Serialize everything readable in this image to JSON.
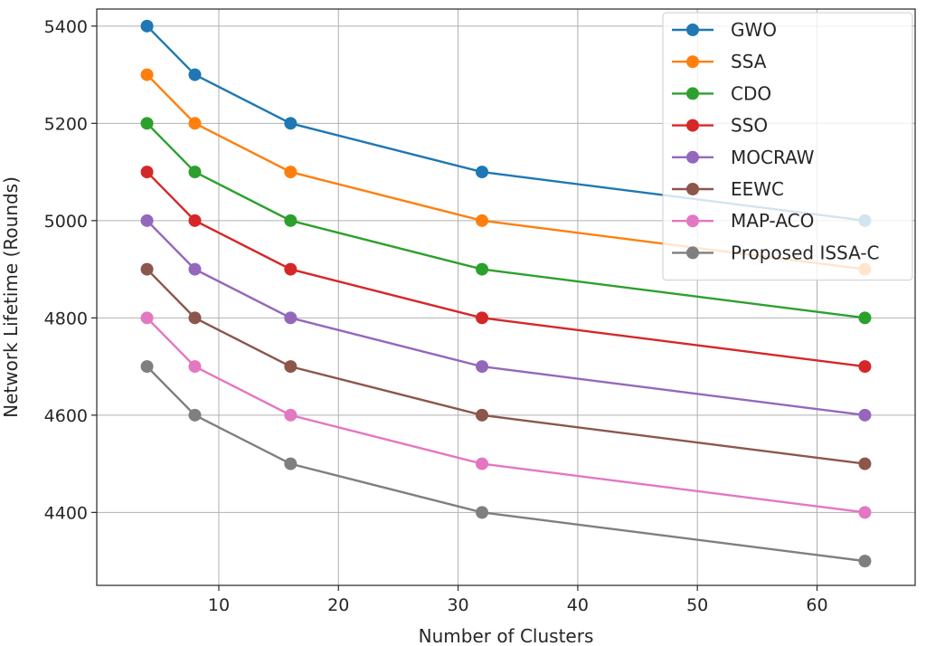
{
  "chart_data": {
    "type": "line",
    "title": "",
    "xlabel": "Number of Clusters",
    "ylabel": "Network Lifetime (Rounds)",
    "xlim": [
      -0.2,
      68.2
    ],
    "ylim": [
      4250,
      5435
    ],
    "xticks": [
      10,
      20,
      30,
      40,
      50,
      60
    ],
    "yticks": [
      4400,
      4600,
      4800,
      5000,
      5200,
      5400
    ],
    "grid": true,
    "legend_position": "upper-right",
    "x": [
      4,
      8,
      16,
      32,
      64
    ],
    "series": [
      {
        "name": "GWO",
        "color": "#1f77b4",
        "values": [
          5400,
          5300,
          5200,
          5100,
          5000
        ]
      },
      {
        "name": "SSA",
        "color": "#ff7f0e",
        "values": [
          5300,
          5200,
          5100,
          5000,
          4900
        ]
      },
      {
        "name": "CDO",
        "color": "#2ca02c",
        "values": [
          5200,
          5100,
          5000,
          4900,
          4800
        ]
      },
      {
        "name": "SSO",
        "color": "#d62728",
        "values": [
          5100,
          5000,
          4900,
          4800,
          4700
        ]
      },
      {
        "name": "MOCRAW",
        "color": "#9467bd",
        "values": [
          5000,
          4900,
          4800,
          4700,
          4600
        ]
      },
      {
        "name": "EEWC",
        "color": "#8c564b",
        "values": [
          4900,
          4800,
          4700,
          4600,
          4500
        ]
      },
      {
        "name": "MAP-ACO",
        "color": "#e377c2",
        "values": [
          4800,
          4700,
          4600,
          4500,
          4400
        ]
      },
      {
        "name": "Proposed ISSA-C",
        "color": "#7f7f7f",
        "values": [
          4700,
          4600,
          4500,
          4400,
          4300
        ]
      }
    ]
  }
}
